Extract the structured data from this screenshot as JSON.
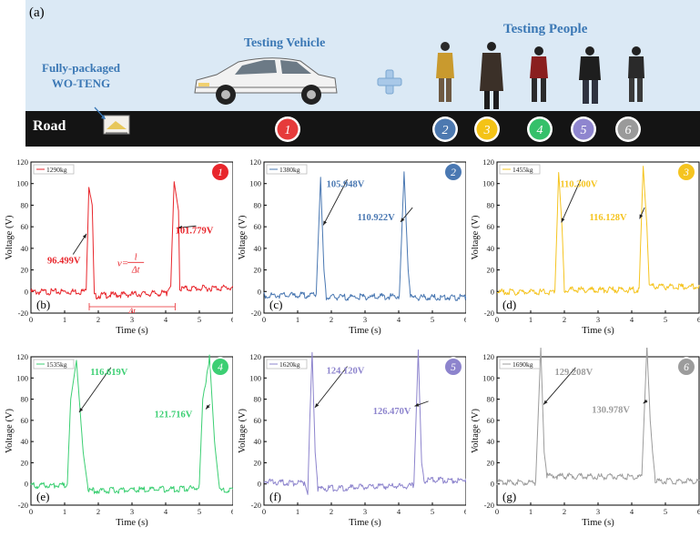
{
  "header": {
    "panel_label": "(a)",
    "road_label": "Road",
    "teng_label_line1": "Fully-packaged",
    "teng_label_line2": "WO-TENG",
    "vehicle_label": "Testing Vehicle",
    "people_label": "Testing People",
    "badges": [
      {
        "num": "1",
        "color": "#e63b3b"
      },
      {
        "num": "2",
        "color": "#4d79b0"
      },
      {
        "num": "3",
        "color": "#f4c316"
      },
      {
        "num": "4",
        "color": "#35c06a"
      },
      {
        "num": "5",
        "color": "#8f86cf"
      },
      {
        "num": "6",
        "color": "#9a9a9a"
      }
    ],
    "plus_color": "#a8c8e8",
    "road_color": "#141414",
    "banner_color": "#dbe9f5"
  },
  "chart_data": [
    {
      "type": "line",
      "panel": "(b)",
      "badge": "1",
      "legend": "1290kg",
      "color": "#e8262c",
      "xlabel": "Time (s)",
      "ylabel": "Voltage (V)",
      "xlim": [
        0,
        6
      ],
      "ylim": [
        -20,
        120
      ],
      "xticks": [
        0,
        1,
        2,
        3,
        4,
        5,
        6
      ],
      "yticks": [
        -20,
        0,
        20,
        40,
        60,
        80,
        100,
        120
      ],
      "peaks": [
        {
          "x": 1.73,
          "y": 96.499
        },
        {
          "x": 4.28,
          "y": 101.779
        }
      ],
      "base": [
        [
          0,
          1.0
        ],
        [
          1.64,
          1.6
        ],
        [
          1.72,
          96.499
        ],
        [
          1.82,
          80
        ],
        [
          1.88,
          -3
        ],
        [
          2.1,
          -2
        ],
        [
          4.05,
          0
        ],
        [
          4.15,
          5
        ],
        [
          4.25,
          101.779
        ],
        [
          4.38,
          75
        ],
        [
          4.42,
          4
        ],
        [
          6,
          5
        ]
      ],
      "annotations": [
        {
          "label": "96.499V",
          "tx": 0.98,
          "ty": 26
        },
        {
          "label": "101.779V",
          "tx": 4.85,
          "ty": 54
        }
      ],
      "formula": {
        "v": "v=",
        "num": "l",
        "den": "Δt"
      },
      "delta": "Δt"
    },
    {
      "type": "line",
      "panel": "(c)",
      "badge": "2",
      "legend": "1380kg",
      "color": "#4a78b2",
      "xlabel": "Time (s)",
      "ylabel": "Voltage (V)",
      "xlim": [
        0,
        6
      ],
      "ylim": [
        -20,
        120
      ],
      "xticks": [
        0,
        1,
        2,
        3,
        4,
        5,
        6
      ],
      "yticks": [
        -20,
        0,
        20,
        40,
        60,
        80,
        100,
        120
      ],
      "peaks": [
        {
          "x": 1.68,
          "y": 105.948
        },
        {
          "x": 4.16,
          "y": 110.922
        }
      ],
      "base": [
        [
          0,
          -2
        ],
        [
          1.55,
          -2
        ],
        [
          1.68,
          105.948
        ],
        [
          1.78,
          20
        ],
        [
          1.85,
          -4
        ],
        [
          4.02,
          -3
        ],
        [
          4.16,
          110.922
        ],
        [
          4.28,
          20
        ],
        [
          4.35,
          -4
        ],
        [
          6,
          -4
        ]
      ],
      "annotations": [
        {
          "label": "105.948V",
          "tx": 2.42,
          "ty": 97
        },
        {
          "label": "110.922V",
          "tx": 3.33,
          "ty": 66
        }
      ]
    },
    {
      "type": "line",
      "panel": "(d)",
      "badge": "3",
      "legend": "1455kg",
      "color": "#f5c420",
      "xlabel": "Time (s)",
      "ylabel": "Voltage (V)",
      "xlim": [
        0,
        6
      ],
      "ylim": [
        -20,
        120
      ],
      "xticks": [
        0,
        1,
        2,
        3,
        4,
        5,
        6
      ],
      "yticks": [
        -20,
        0,
        20,
        40,
        60,
        80,
        100,
        120
      ],
      "peaks": [
        {
          "x": 1.83,
          "y": 110.3
        },
        {
          "x": 4.34,
          "y": 116.128
        }
      ],
      "base": [
        [
          0,
          1
        ],
        [
          1.72,
          1
        ],
        [
          1.83,
          110.3
        ],
        [
          1.93,
          60
        ],
        [
          2.0,
          3
        ],
        [
          4.22,
          3
        ],
        [
          4.34,
          116.128
        ],
        [
          4.45,
          60
        ],
        [
          4.52,
          6
        ],
        [
          6,
          6
        ]
      ],
      "annotations": [
        {
          "label": "110.300V",
          "tx": 2.43,
          "ty": 97
        },
        {
          "label": "116.128V",
          "tx": 3.3,
          "ty": 66
        }
      ]
    },
    {
      "type": "line",
      "panel": "(e)",
      "badge": "4",
      "legend": "1535kg",
      "color": "#3ccf73",
      "xlabel": "Time (s)",
      "ylabel": "Voltage (V)",
      "xlim": [
        0,
        6
      ],
      "ylim": [
        -20,
        120
      ],
      "xticks": [
        0,
        1,
        2,
        3,
        4,
        5,
        6
      ],
      "yticks": [
        -20,
        0,
        20,
        40,
        60,
        80,
        100,
        120
      ],
      "peaks": [
        {
          "x": 1.35,
          "y": 116.619
        },
        {
          "x": 5.3,
          "y": 121.716
        }
      ],
      "base": [
        [
          0,
          0
        ],
        [
          1.08,
          0
        ],
        [
          1.18,
          80
        ],
        [
          1.35,
          116.619
        ],
        [
          1.55,
          30
        ],
        [
          1.7,
          -5
        ],
        [
          4.8,
          -3
        ],
        [
          5.0,
          0
        ],
        [
          5.1,
          80
        ],
        [
          5.3,
          121.716
        ],
        [
          5.45,
          40
        ],
        [
          5.6,
          -5
        ],
        [
          6,
          -5
        ]
      ],
      "annotations": [
        {
          "label": "116.619V",
          "tx": 2.32,
          "ty": 103
        },
        {
          "label": "121.716V",
          "tx": 4.23,
          "ty": 63
        }
      ]
    },
    {
      "type": "line",
      "panel": "(f)",
      "badge": "5",
      "legend": "1620kg",
      "color": "#8d84cd",
      "xlabel": "Time (s)",
      "ylabel": "Voltage (V)",
      "xlim": [
        0,
        6
      ],
      "ylim": [
        -20,
        120
      ],
      "xticks": [
        0,
        1,
        2,
        3,
        4,
        5,
        6
      ],
      "yticks": [
        -20,
        0,
        20,
        40,
        60,
        80,
        100,
        120
      ],
      "peaks": [
        {
          "x": 1.43,
          "y": 124.12
        },
        {
          "x": 4.58,
          "y": 126.47
        }
      ],
      "base": [
        [
          0,
          4
        ],
        [
          1.2,
          2
        ],
        [
          1.3,
          -10
        ],
        [
          1.36,
          60
        ],
        [
          1.43,
          124.12
        ],
        [
          1.52,
          30
        ],
        [
          1.6,
          -3
        ],
        [
          4.45,
          0
        ],
        [
          4.58,
          126.47
        ],
        [
          4.68,
          20
        ],
        [
          4.75,
          5
        ],
        [
          6,
          5
        ]
      ],
      "annotations": [
        {
          "label": "124.120V",
          "tx": 2.42,
          "ty": 104
        },
        {
          "label": "126.470V",
          "tx": 3.8,
          "ty": 66
        }
      ]
    },
    {
      "type": "line",
      "panel": "(g)",
      "badge": "6",
      "legend": "1690kg",
      "color": "#9c9c9c",
      "xlabel": "Time (s)",
      "ylabel": "Voltage (V)",
      "xlim": [
        0,
        6
      ],
      "ylim": [
        -20,
        120
      ],
      "xticks": [
        0,
        1,
        2,
        3,
        4,
        5,
        6
      ],
      "yticks": [
        -20,
        0,
        20,
        40,
        60,
        80,
        100,
        120
      ],
      "peaks": [
        {
          "x": 1.3,
          "y": 129.208
        },
        {
          "x": 4.45,
          "y": 130.978
        }
      ],
      "base": [
        [
          0,
          3
        ],
        [
          1.15,
          3
        ],
        [
          1.3,
          129.208
        ],
        [
          1.4,
          30
        ],
        [
          1.48,
          9
        ],
        [
          4.3,
          8
        ],
        [
          4.45,
          130.978
        ],
        [
          4.55,
          60
        ],
        [
          4.62,
          30
        ],
        [
          4.7,
          4
        ],
        [
          6,
          4
        ]
      ],
      "annotations": [
        {
          "label": "129.208V",
          "tx": 2.28,
          "ty": 103
        },
        {
          "label": "130.978V",
          "tx": 3.38,
          "ty": 67
        }
      ]
    }
  ]
}
